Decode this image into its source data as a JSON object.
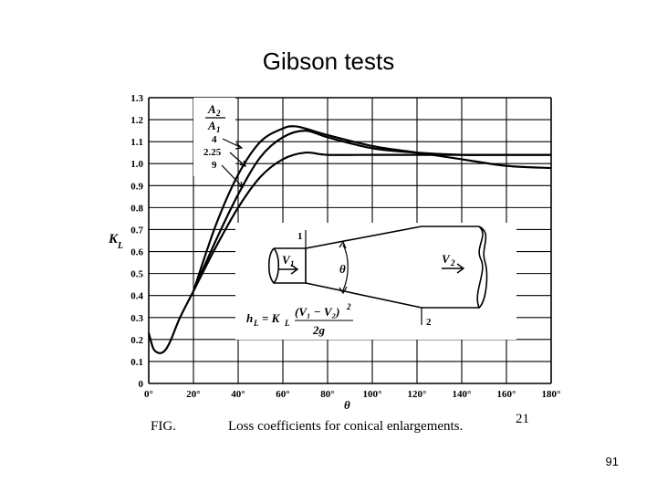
{
  "slide": {
    "title": "Gibson tests",
    "page_number": "91"
  },
  "chart_data": {
    "type": "line",
    "xlabel": "θ",
    "ylabel": "K",
    "ylabel_sub": "L",
    "xlim": [
      0,
      180
    ],
    "ylim": [
      0,
      1.3
    ],
    "xticks": [
      0,
      20,
      40,
      60,
      80,
      100,
      120,
      140,
      160,
      180
    ],
    "xtick_labels": [
      "0°",
      "20°",
      "40°",
      "60°",
      "80°",
      "100°",
      "120°",
      "140°",
      "160°",
      "180°"
    ],
    "yticks": [
      0,
      0.1,
      0.2,
      0.3,
      0.4,
      0.5,
      0.6,
      0.7,
      0.8,
      0.9,
      1.0,
      1.1,
      1.2,
      1.3
    ],
    "ytick_labels": [
      "0",
      "0.1",
      "0.2",
      "0.3",
      "0.4",
      "0.5",
      "0.6",
      "0.7",
      "0.8",
      "0.9",
      "1.0",
      "1.1",
      "1.2",
      "1.3"
    ],
    "grid": true,
    "legend": {
      "header_num": "A",
      "header_num_sub": "2",
      "header_den": "A",
      "header_den_sub": "1",
      "entries": [
        "4",
        "2.25",
        "9"
      ]
    },
    "series": [
      {
        "name": "4",
        "x": [
          20,
          30,
          40,
          50,
          60,
          65,
          70,
          80,
          100,
          120,
          140,
          160,
          180
        ],
        "y": [
          0.42,
          0.72,
          0.95,
          1.1,
          1.16,
          1.17,
          1.16,
          1.13,
          1.08,
          1.05,
          1.02,
          0.99,
          0.98
        ]
      },
      {
        "name": "2.25",
        "x": [
          20,
          30,
          40,
          50,
          60,
          70,
          80,
          100,
          120,
          140,
          160,
          180
        ],
        "y": [
          0.42,
          0.65,
          0.86,
          1.03,
          1.12,
          1.15,
          1.12,
          1.07,
          1.05,
          1.04,
          1.04,
          1.04
        ]
      },
      {
        "name": "9",
        "x": [
          0,
          2,
          4,
          6,
          8,
          10,
          14,
          20,
          30,
          40,
          50,
          60,
          70,
          80,
          100,
          120,
          140,
          180
        ],
        "y": [
          0.23,
          0.16,
          0.14,
          0.14,
          0.16,
          0.2,
          0.3,
          0.42,
          0.62,
          0.8,
          0.94,
          1.02,
          1.05,
          1.04,
          1.04,
          1.04,
          1.04,
          1.04
        ]
      }
    ],
    "inset": {
      "formula_lhs": "h",
      "formula_lhs_sub": "L",
      "formula_eq": "= K",
      "formula_eq_sub": "L",
      "formula_numerator": "(V₁ − V₂)",
      "formula_numerator_exp": "2",
      "formula_denominator": "2g",
      "v1": "V",
      "v1_sub": "1",
      "v2": "V",
      "v2_sub": "2",
      "angle": "θ",
      "section1": "1",
      "section2": "2"
    },
    "caption_label": "FIG.",
    "caption_text": "Loss coefficients for conical enlargements.",
    "caption_ref": "21"
  }
}
